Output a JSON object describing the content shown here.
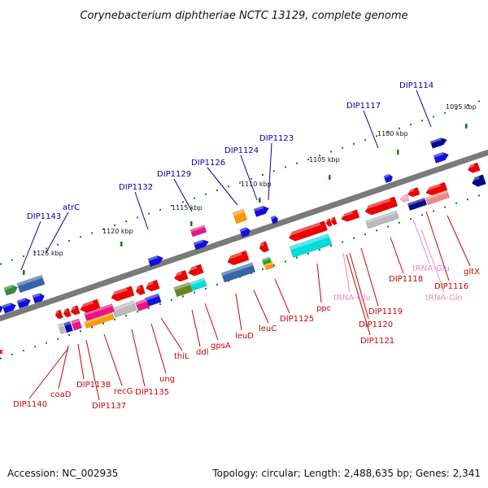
{
  "title": "Corynebacterium diphtheriae NCTC 13129, complete genome",
  "footer": {
    "accession": "Accession: NC_002935",
    "topology": "Topology: circular; Length: 2,488,635 bp; Genes: 2,341"
  },
  "ruler_labels": [
    "1095 kbp",
    "1100 kbp",
    "1105 kbp",
    "1110 kbp",
    "1115 kbp",
    "1120 kbp",
    "1125 kbp"
  ],
  "colors": {
    "backbone": "#7a7a7a",
    "forward_label": "#0000aa",
    "reverse_label": "#cc0000",
    "rna_label": "#ee88bb",
    "tick": "#1a7a1a"
  },
  "top_labels": [
    "DIP1114",
    "DIP1117",
    "DIP1123",
    "DIP1124",
    "DIP1126",
    "DIP1129",
    "DIP1132",
    "atrC",
    "DIP1143"
  ],
  "bottom_labels": [
    "gltX",
    "tRNA-Glu",
    "tRNA-Gln",
    "DIP1116",
    "DIP1118",
    "tRNA-Glu",
    "DIP1119",
    "DIP1120",
    "DIP1121",
    "ppc",
    "DIP1125",
    "leuC",
    "leuD",
    "gpsA",
    "ddl",
    "thiL",
    "ung",
    "DIP1135",
    "recG",
    "DIP1137",
    "DIP1138",
    "coaD",
    "DIP1140"
  ]
}
